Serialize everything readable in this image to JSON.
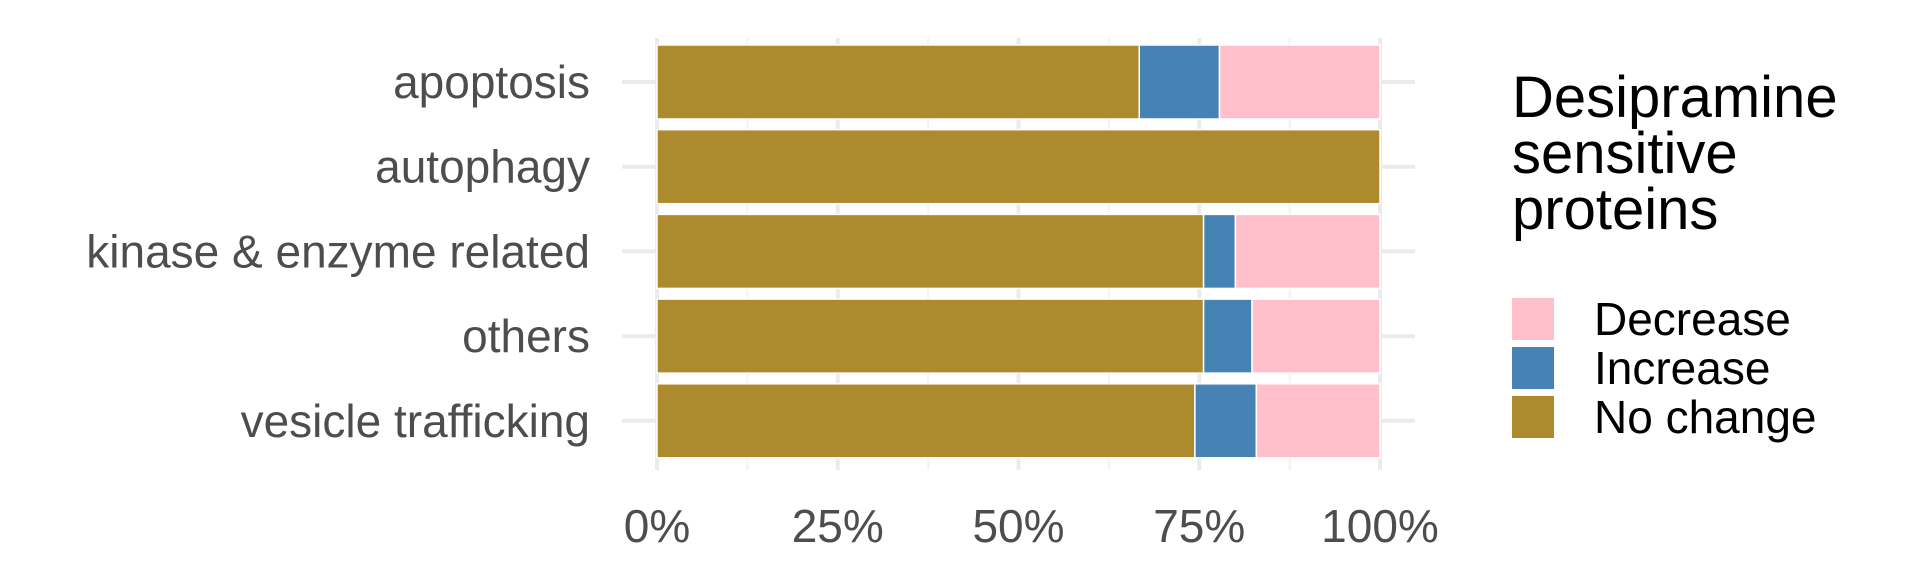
{
  "chart_data": {
    "type": "bar",
    "orientation": "horizontal",
    "stacked": "percent",
    "categories": [
      "apoptosis",
      "autophagy",
      "kinase & enzyme related",
      "others",
      "vesicle trafficking"
    ],
    "series": [
      {
        "name": "No change",
        "values": [
          66.7,
          100,
          75.6,
          75.6,
          74.4
        ],
        "color": "#ad8a2d"
      },
      {
        "name": "Increase",
        "values": [
          11.1,
          0,
          4.4,
          6.7,
          8.5
        ],
        "color": "#4682b4"
      },
      {
        "name": "Decrease",
        "values": [
          22.2,
          0,
          20.0,
          17.7,
          17.1
        ],
        "color": "#ffc0cb"
      }
    ],
    "xlim": [
      0,
      100
    ],
    "x_ticks": [
      "0%",
      "25%",
      "50%",
      "75%",
      "100%"
    ],
    "grid": true,
    "legend": {
      "title_lines": [
        "Desipramine",
        "sensitive",
        "proteins"
      ],
      "position": "right",
      "entries": [
        {
          "name": "Decrease",
          "color": "#ffc0cb"
        },
        {
          "name": "Increase",
          "color": "#4682b4"
        },
        {
          "name": "No change",
          "color": "#ad8a2d"
        }
      ]
    }
  }
}
